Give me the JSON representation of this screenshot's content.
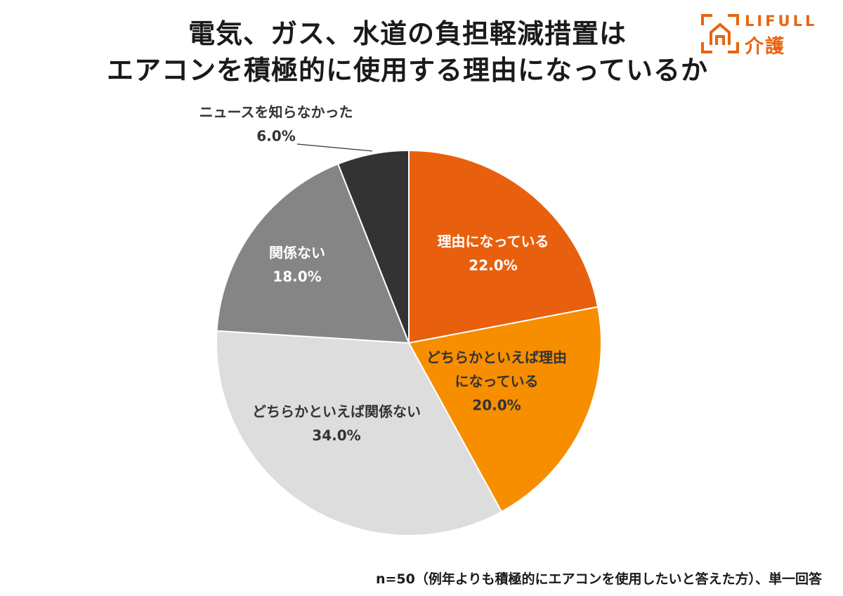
{
  "header": {
    "title_line1": "電気、ガス、水道の負担軽減措置は",
    "title_line2": "エアコンを積極的に使用する理由になっているか"
  },
  "logo": {
    "brand": "LIFULL",
    "service": "介護",
    "icon": "house-bracket-icon",
    "color": "#e8650f"
  },
  "chart_data": {
    "type": "pie",
    "title": "電気、ガス、水道の負担軽減措置は エアコンを積極的に使用する理由になっているか",
    "start_angle_deg": 0,
    "direction": "clockwise",
    "slices": [
      {
        "label_lines": [
          "理由になっている"
        ],
        "value": 22.0,
        "value_label": "22.0%",
        "color": "#e8600e",
        "label_color": "#ffffff"
      },
      {
        "label_lines": [
          "どちらかといえば理由",
          "になっている"
        ],
        "value": 20.0,
        "value_label": "20.0%",
        "color": "#f68e00",
        "label_color": "#333333"
      },
      {
        "label_lines": [
          "どちらかといえば関係ない"
        ],
        "value": 34.0,
        "value_label": "34.0%",
        "color": "#dddddd",
        "label_color": "#333333"
      },
      {
        "label_lines": [
          "関係ない"
        ],
        "value": 18.0,
        "value_label": "18.0%",
        "color": "#858585",
        "label_color": "#ffffff"
      },
      {
        "label_lines": [
          "ニュースを知らなかった"
        ],
        "value": 6.0,
        "value_label": "6.0%",
        "color": "#333333",
        "label_color": "#333333",
        "label_outside": true
      }
    ]
  },
  "footer": {
    "note": "n=50（例年よりも積極的にエアコンを使用したいと答えた方）、単一回答"
  }
}
